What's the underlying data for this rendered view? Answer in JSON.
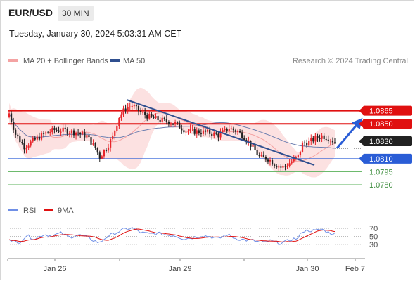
{
  "header": {
    "symbol": "EUR/USD",
    "timeframe": "30 MIN",
    "datetime": "Tuesday, January 30, 2024 5:03:31 AM CET"
  },
  "legend": {
    "items": [
      {
        "label": "MA 20 + Bollinger Bands",
        "color": "#f4a3a3"
      },
      {
        "label": "MA 50",
        "color": "#2f4f8f"
      }
    ],
    "credit": "Research © 2024 Trading Central"
  },
  "rsi_legend": {
    "items": [
      {
        "label": "RSI",
        "color": "#6f8fe6"
      },
      {
        "label": "9MA",
        "color": "#e01010"
      }
    ]
  },
  "colors": {
    "bull": "#e8242a",
    "bear": "#222222",
    "resistance": "#e01010",
    "support": "#2a5dd6",
    "target": "#58b058",
    "trendline": "#2f4f8f",
    "arrow": "#2a5dd6",
    "current_bg": "#222222",
    "band_fill": "#fbdcdc"
  },
  "chart_data": {
    "type": "candlestick",
    "instrument": "EUR/USD",
    "interval": "30 MIN",
    "ylim": [
      1.0776,
      1.0905
    ],
    "x_ticks": [
      "Jan 26",
      "Jan 29",
      "Jan 30",
      "Feb 7"
    ],
    "current_price": "1.0830",
    "levels": [
      {
        "value": 1.0865,
        "label": "1.0865",
        "kind": "resistance"
      },
      {
        "value": 1.085,
        "label": "1.0850",
        "kind": "resistance"
      },
      {
        "value": 1.081,
        "label": "1.0810",
        "kind": "support"
      },
      {
        "value": 1.0795,
        "label": "1.0795",
        "kind": "target"
      },
      {
        "value": 1.078,
        "label": "1.0780",
        "kind": "target"
      }
    ],
    "close_anchors": [
      [
        0,
        1.0862
      ],
      [
        3,
        1.0838
      ],
      [
        7,
        1.0824
      ],
      [
        11,
        1.083
      ],
      [
        16,
        1.0838
      ],
      [
        21,
        1.0843
      ],
      [
        26,
        1.0842
      ],
      [
        31,
        1.084
      ],
      [
        36,
        1.0836
      ],
      [
        40,
        1.0822
      ],
      [
        42,
        1.0812
      ],
      [
        45,
        1.0822
      ],
      [
        48,
        1.0835
      ],
      [
        51,
        1.0858
      ],
      [
        54,
        1.0868
      ],
      [
        57,
        1.0871
      ],
      [
        61,
        1.0863
      ],
      [
        65,
        1.0858
      ],
      [
        69,
        1.0855
      ],
      [
        73,
        1.0853
      ],
      [
        77,
        1.085
      ],
      [
        82,
        1.0842
      ],
      [
        87,
        1.0841
      ],
      [
        92,
        1.084
      ],
      [
        97,
        1.0837
      ],
      [
        102,
        1.0845
      ],
      [
        106,
        1.0841
      ],
      [
        109,
        1.0835
      ],
      [
        113,
        1.0823
      ],
      [
        116,
        1.0812
      ],
      [
        120,
        1.081
      ],
      [
        123,
        1.0804
      ],
      [
        126,
        1.08
      ],
      [
        128,
        1.0801
      ],
      [
        131,
        1.0807
      ],
      [
        134,
        1.0812
      ],
      [
        136,
        1.0827
      ],
      [
        139,
        1.0829
      ],
      [
        142,
        1.0833
      ],
      [
        145,
        1.0836
      ],
      [
        148,
        1.0834
      ],
      [
        151,
        1.0829
      ]
    ],
    "rsi_scale": [
      30,
      50,
      70
    ],
    "rsi_anchors": [
      [
        0,
        45
      ],
      [
        4,
        32
      ],
      [
        8,
        52
      ],
      [
        12,
        44
      ],
      [
        16,
        55
      ],
      [
        20,
        52
      ],
      [
        24,
        58
      ],
      [
        28,
        48
      ],
      [
        32,
        54
      ],
      [
        36,
        48
      ],
      [
        40,
        38
      ],
      [
        42,
        34
      ],
      [
        45,
        48
      ],
      [
        49,
        58
      ],
      [
        53,
        67
      ],
      [
        57,
        71
      ],
      [
        61,
        60
      ],
      [
        65,
        56
      ],
      [
        69,
        58
      ],
      [
        73,
        54
      ],
      [
        77,
        52
      ],
      [
        81,
        44
      ],
      [
        85,
        47
      ],
      [
        89,
        52
      ],
      [
        93,
        50
      ],
      [
        97,
        44
      ],
      [
        101,
        55
      ],
      [
        105,
        45
      ],
      [
        109,
        41
      ],
      [
        113,
        40
      ],
      [
        117,
        34
      ],
      [
        121,
        39
      ],
      [
        125,
        33
      ],
      [
        128,
        36
      ],
      [
        131,
        43
      ],
      [
        134,
        45
      ],
      [
        136,
        63
      ],
      [
        139,
        65
      ],
      [
        142,
        64
      ],
      [
        145,
        68
      ],
      [
        148,
        60
      ],
      [
        151,
        56
      ]
    ]
  }
}
